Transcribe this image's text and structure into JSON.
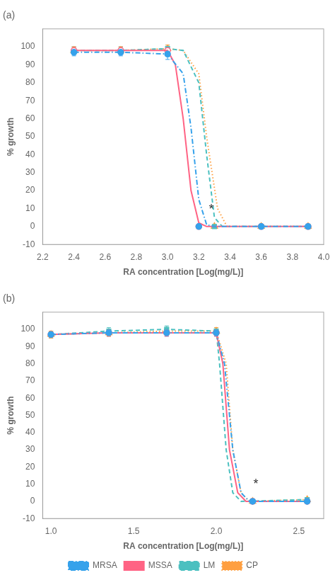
{
  "chart_data": [
    {
      "type": "line",
      "title": "(a)",
      "xlabel": "RA concentration [Log(mg/L)]",
      "ylabel": "% growth",
      "xlim": [
        2.2,
        4.0
      ],
      "xticks": [
        2.2,
        2.4,
        2.6,
        2.8,
        {
          "value": 3.0,
          "label": "3.0"
        },
        3.2,
        3.4,
        3.6,
        3.8,
        {
          "value": 4.0,
          "label": "4.0"
        }
      ],
      "ylim": [
        -10,
        110
      ],
      "yticks": [
        -10,
        0,
        10,
        20,
        30,
        40,
        50,
        60,
        70,
        80,
        90,
        100
      ],
      "grid": false,
      "annotations": [
        {
          "x": 3.28,
          "y": 6,
          "text": "*"
        }
      ],
      "series": [
        {
          "name": "MRSA",
          "line_style": "dashdot",
          "marker": "circle",
          "x": [
            2.4,
            2.7,
            3.0,
            3.1,
            3.15,
            3.2,
            3.25,
            3.3,
            3.6,
            3.9
          ],
          "values": [
            97,
            97,
            96,
            85,
            55,
            15,
            1,
            0,
            0,
            0
          ],
          "markers": {
            "x": [
              2.4,
              2.7,
              3.0,
              3.2,
              3.6,
              3.9
            ],
            "values": [
              97,
              97,
              96,
              0,
              0,
              0
            ],
            "yerr": [
              2,
              2,
              3,
              1,
              1,
              1
            ]
          }
        },
        {
          "name": "MSSA",
          "line_style": "solid",
          "marker": "open-circle",
          "x": [
            2.4,
            2.7,
            3.0,
            3.05,
            3.1,
            3.15,
            3.2,
            3.25,
            3.6,
            3.9
          ],
          "values": [
            98,
            98,
            98,
            90,
            60,
            20,
            2,
            0,
            0,
            0
          ],
          "markers": {
            "x": [
              2.4,
              2.7,
              3.0,
              3.2,
              3.6,
              3.9
            ],
            "values": [
              98,
              98,
              98,
              0,
              0,
              0
            ],
            "yerr": [
              2,
              2,
              2,
              1,
              1,
              1
            ]
          }
        },
        {
          "name": "LM",
          "line_style": "dashed",
          "marker": "square",
          "x": [
            2.4,
            2.7,
            3.0,
            3.1,
            3.2,
            3.25,
            3.3,
            3.35,
            3.6,
            3.9
          ],
          "values": [
            98,
            98,
            99,
            98,
            80,
            40,
            5,
            0,
            0,
            0
          ],
          "markers": {
            "x": [
              2.4,
              2.7,
              3.0,
              3.3,
              3.6,
              3.9
            ],
            "values": [
              98,
              98,
              99,
              0,
              0,
              0
            ],
            "yerr": [
              2,
              2,
              2,
              1,
              1,
              1
            ]
          }
        },
        {
          "name": "CP",
          "line_style": "dotted",
          "marker": "open-triangle",
          "x": [
            2.4,
            2.7,
            3.0,
            3.1,
            3.2,
            3.25,
            3.32,
            3.38,
            3.6,
            3.9
          ],
          "values": [
            98,
            98,
            99,
            98,
            85,
            50,
            10,
            0,
            0,
            0
          ],
          "markers": {
            "x": [
              2.4,
              2.7,
              3.0,
              3.3,
              3.6,
              3.9
            ],
            "values": [
              98,
              98,
              99,
              0,
              0,
              0
            ],
            "yerr": [
              2,
              2,
              2,
              1,
              1,
              1
            ]
          }
        }
      ]
    },
    {
      "type": "line",
      "title": "(b)",
      "xlabel": "RA concentration [Log(mg/L)]",
      "ylabel": "% growth",
      "xlim": [
        0.95,
        2.65
      ],
      "xticks": [
        {
          "value": 1.0,
          "label": "1.0"
        },
        1.5,
        {
          "value": 2.0,
          "label": "2.0"
        },
        2.5
      ],
      "ylim": [
        -10,
        110
      ],
      "yticks": [
        -10,
        0,
        10,
        20,
        30,
        40,
        50,
        60,
        70,
        80,
        90,
        100
      ],
      "grid": false,
      "legend": "bottom",
      "annotations": [
        {
          "x": 2.24,
          "y": 6,
          "text": "*"
        }
      ],
      "series": [
        {
          "name": "MRSA",
          "line_style": "dashdot",
          "marker": "circle",
          "x": [
            1.0,
            1.35,
            1.7,
            2.0,
            2.05,
            2.1,
            2.15,
            2.2,
            2.55
          ],
          "values": [
            97,
            98,
            98,
            98,
            80,
            30,
            5,
            0,
            0
          ],
          "markers": {
            "x": [
              1.0,
              1.35,
              1.7,
              2.0,
              2.22,
              2.55
            ],
            "values": [
              97,
              98,
              98,
              98,
              0,
              0
            ],
            "yerr": [
              2,
              2,
              2,
              2,
              1,
              1
            ]
          }
        },
        {
          "name": "MSSA",
          "line_style": "solid",
          "marker": "open-circle",
          "x": [
            1.0,
            1.35,
            1.7,
            2.0,
            2.04,
            2.08,
            2.13,
            2.18,
            2.55
          ],
          "values": [
            97,
            98,
            98,
            98,
            80,
            30,
            5,
            0,
            0
          ],
          "markers": {
            "x": [
              1.0,
              1.35,
              1.7,
              2.0,
              2.22,
              2.55
            ],
            "values": [
              97,
              98,
              98,
              98,
              0,
              0
            ],
            "yerr": [
              2,
              2,
              2,
              2,
              1,
              1
            ]
          }
        },
        {
          "name": "LM",
          "line_style": "dashed",
          "marker": "square",
          "x": [
            1.0,
            1.35,
            1.7,
            2.0,
            2.02,
            2.06,
            2.1,
            2.15,
            2.55
          ],
          "values": [
            97,
            99,
            100,
            99,
            80,
            30,
            5,
            0,
            1
          ],
          "markers": {
            "x": [
              1.0,
              1.35,
              1.7,
              2.0,
              2.22,
              2.55
            ],
            "values": [
              97,
              99,
              100,
              99,
              0,
              1
            ],
            "yerr": [
              2,
              2,
              2,
              2,
              1,
              1
            ]
          }
        },
        {
          "name": "CP",
          "line_style": "dotted",
          "marker": "open-triangle",
          "x": [
            1.0,
            1.35,
            1.7,
            2.0,
            2.06,
            2.1,
            2.15,
            2.2,
            2.55
          ],
          "values": [
            97,
            98,
            99,
            99,
            80,
            30,
            5,
            0,
            1
          ],
          "markers": {
            "x": [
              1.0,
              1.35,
              1.7,
              2.0,
              2.22,
              2.55
            ],
            "values": [
              97,
              98,
              99,
              99,
              0,
              1
            ],
            "yerr": [
              2,
              2,
              2,
              2,
              1,
              1
            ]
          }
        }
      ]
    }
  ]
}
